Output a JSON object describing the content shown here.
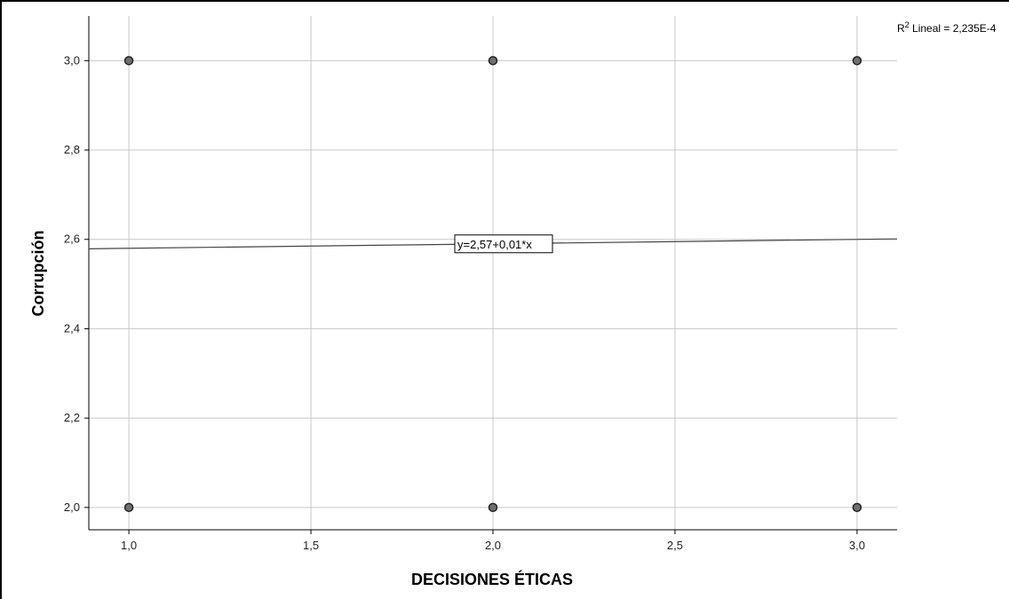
{
  "chart_data": {
    "type": "scatter",
    "title": "",
    "xlabel": "DECISIONES ÉTICAS",
    "ylabel": "Corrupción",
    "xlim": [
      0.89,
      3.11
    ],
    "ylim": [
      1.95,
      3.1
    ],
    "x_ticks": [
      1.0,
      1.5,
      2.0,
      2.5,
      3.0
    ],
    "x_tick_labels": [
      "1,0",
      "1,5",
      "2,0",
      "2,5",
      "3,0"
    ],
    "y_ticks": [
      2.0,
      2.2,
      2.4,
      2.6,
      2.8,
      3.0
    ],
    "y_tick_labels": [
      "2,0",
      "2,2",
      "2,4",
      "2,6",
      "2,8",
      "3,0"
    ],
    "grid": true,
    "points": [
      {
        "x": 1,
        "y": 3
      },
      {
        "x": 2,
        "y": 3
      },
      {
        "x": 3,
        "y": 3
      },
      {
        "x": 1,
        "y": 2
      },
      {
        "x": 2,
        "y": 2
      },
      {
        "x": 3,
        "y": 2
      }
    ],
    "fit_line": {
      "intercept": 2.57,
      "slope": 0.01
    },
    "equation_label": "y=2,57+0,01*x",
    "r2_label_prefix": "R",
    "r2_label_sup": "2",
    "r2_label_rest": " Lineal = 2,235E-4",
    "colors": {
      "point_fill": "#6f6f6f",
      "point_stroke": "#222222",
      "grid": "#c8c8c8",
      "fit_line": "#444444",
      "axis": "#000000"
    }
  }
}
